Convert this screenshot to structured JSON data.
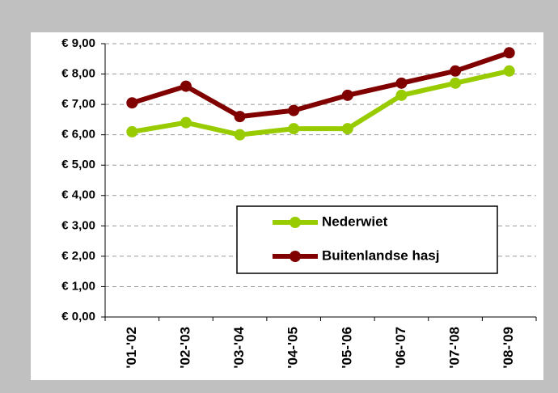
{
  "chart_data": {
    "type": "line",
    "categories": [
      "'01-'02",
      "'02-'03",
      "'03-'04",
      "'04-'05",
      "'05-'06",
      "'06-'07",
      "'07-'08",
      "'08-'09"
    ],
    "series": [
      {
        "name": "Nederwiet",
        "color": "#99cc00",
        "values": [
          6.1,
          6.4,
          6.0,
          6.2,
          6.2,
          7.3,
          7.7,
          8.1
        ]
      },
      {
        "name": "Buitenlandse hasj",
        "color": "#800000",
        "values": [
          7.05,
          7.6,
          6.6,
          6.8,
          7.3,
          7.7,
          8.1,
          8.7
        ]
      }
    ],
    "ylim": [
      0,
      9
    ],
    "yticks": [
      {
        "value": 0,
        "label": "€ 0,00"
      },
      {
        "value": 1,
        "label": "€ 1,00"
      },
      {
        "value": 2,
        "label": "€ 2,00"
      },
      {
        "value": 3,
        "label": "€ 3,00"
      },
      {
        "value": 4,
        "label": "€ 4,00"
      },
      {
        "value": 5,
        "label": "€ 5,00"
      },
      {
        "value": 6,
        "label": "€ 6,00"
      },
      {
        "value": 7,
        "label": "€ 7,00"
      },
      {
        "value": 8,
        "label": "€ 8,00"
      },
      {
        "value": 9,
        "label": "€ 9,00"
      }
    ],
    "grid": true,
    "legend": "lower right"
  }
}
